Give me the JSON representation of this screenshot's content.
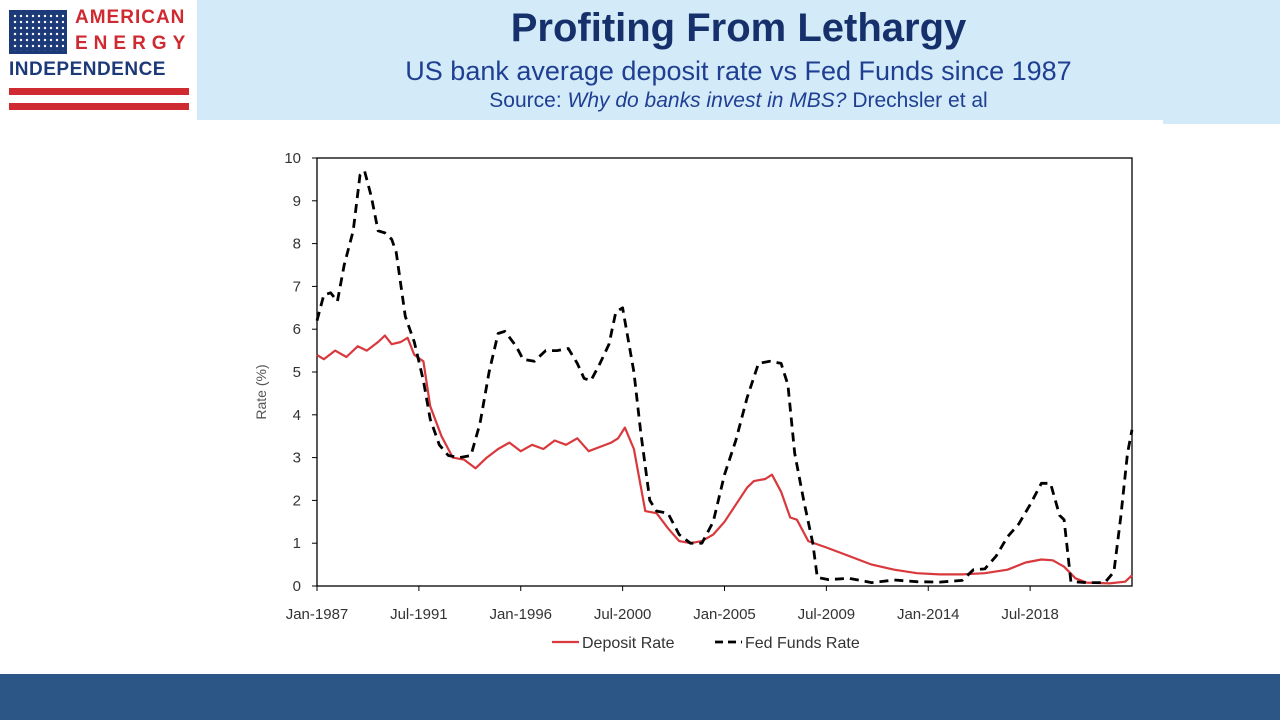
{
  "logo": {
    "line1": "AMERICAN",
    "line2": "ENERGY",
    "line3": "INDEPENDENCE"
  },
  "header": {
    "title": "Profiting From Lethargy",
    "subtitle": "US bank average deposit rate vs Fed Funds since 1987",
    "source_prefix": "Source: ",
    "source_title": "Why do banks invest in MBS?",
    "source_authors": " Drechsler et al"
  },
  "colors": {
    "header_band": "#d3eaf8",
    "title": "#15306b",
    "subtitle": "#1f3f92",
    "logo_red": "#cf2a31",
    "logo_blue": "#1d3a78",
    "footer": "#2c5685",
    "deposit_line": "#d9383c",
    "fedfunds_line": "#000000"
  },
  "chart_data": {
    "type": "line",
    "title": "",
    "xlabel": "",
    "ylabel": "Rate (%)",
    "xlim": [
      1987.0,
      2023.0
    ],
    "ylim": [
      0,
      10
    ],
    "yticks": [
      0,
      1,
      2,
      3,
      4,
      5,
      6,
      7,
      8,
      9,
      10
    ],
    "xticks": [
      {
        "label": "Jan-1987",
        "value": 1987.0
      },
      {
        "label": "Jul-1991",
        "value": 1991.5
      },
      {
        "label": "Jan-1996",
        "value": 1996.0
      },
      {
        "label": "Jul-2000",
        "value": 2000.5
      },
      {
        "label": "Jan-2005",
        "value": 2005.0
      },
      {
        "label": "Jul-2009",
        "value": 2009.5
      },
      {
        "label": "Jan-2014",
        "value": 2014.0
      },
      {
        "label": "Jul-2018",
        "value": 2018.5
      }
    ],
    "legend_position": "bottom",
    "grid": false,
    "series": [
      {
        "name": "Deposit Rate",
        "style": "solid",
        "color": "#d9383c",
        "points": [
          [
            1987.0,
            5.4
          ],
          [
            1987.3,
            5.3
          ],
          [
            1987.8,
            5.5
          ],
          [
            1988.3,
            5.35
          ],
          [
            1988.8,
            5.6
          ],
          [
            1989.2,
            5.5
          ],
          [
            1989.7,
            5.7
          ],
          [
            1990.0,
            5.85
          ],
          [
            1990.3,
            5.65
          ],
          [
            1990.7,
            5.7
          ],
          [
            1991.0,
            5.8
          ],
          [
            1991.3,
            5.4
          ],
          [
            1991.7,
            5.25
          ],
          [
            1992.0,
            4.2
          ],
          [
            1992.5,
            3.5
          ],
          [
            1993.0,
            3.0
          ],
          [
            1993.5,
            2.95
          ],
          [
            1994.0,
            2.75
          ],
          [
            1994.5,
            3.0
          ],
          [
            1995.0,
            3.2
          ],
          [
            1995.5,
            3.35
          ],
          [
            1996.0,
            3.15
          ],
          [
            1996.5,
            3.3
          ],
          [
            1997.0,
            3.2
          ],
          [
            1997.5,
            3.4
          ],
          [
            1998.0,
            3.3
          ],
          [
            1998.5,
            3.45
          ],
          [
            1999.0,
            3.15
          ],
          [
            1999.5,
            3.25
          ],
          [
            2000.0,
            3.35
          ],
          [
            2000.3,
            3.45
          ],
          [
            2000.6,
            3.7
          ],
          [
            2001.0,
            3.2
          ],
          [
            2001.5,
            1.75
          ],
          [
            2002.0,
            1.7
          ],
          [
            2002.5,
            1.35
          ],
          [
            2003.0,
            1.05
          ],
          [
            2003.5,
            1.0
          ],
          [
            2004.0,
            1.05
          ],
          [
            2004.5,
            1.2
          ],
          [
            2005.0,
            1.5
          ],
          [
            2005.5,
            1.9
          ],
          [
            2006.0,
            2.3
          ],
          [
            2006.3,
            2.45
          ],
          [
            2006.8,
            2.5
          ],
          [
            2007.1,
            2.6
          ],
          [
            2007.5,
            2.2
          ],
          [
            2007.9,
            1.6
          ],
          [
            2008.2,
            1.55
          ],
          [
            2008.7,
            1.05
          ],
          [
            2009.5,
            0.9
          ],
          [
            2010.5,
            0.7
          ],
          [
            2011.5,
            0.5
          ],
          [
            2012.5,
            0.38
          ],
          [
            2013.5,
            0.3
          ],
          [
            2014.5,
            0.27
          ],
          [
            2015.5,
            0.27
          ],
          [
            2016.5,
            0.3
          ],
          [
            2017.5,
            0.38
          ],
          [
            2018.3,
            0.55
          ],
          [
            2019.0,
            0.62
          ],
          [
            2019.5,
            0.6
          ],
          [
            2020.0,
            0.45
          ],
          [
            2020.5,
            0.18
          ],
          [
            2021.0,
            0.08
          ],
          [
            2022.0,
            0.06
          ],
          [
            2022.7,
            0.1
          ],
          [
            2023.0,
            0.25
          ]
        ]
      },
      {
        "name": "Fed Funds Rate",
        "style": "dashed",
        "color": "#000000",
        "points": [
          [
            1987.0,
            6.2
          ],
          [
            1987.3,
            6.8
          ],
          [
            1987.6,
            6.85
          ],
          [
            1987.9,
            6.65
          ],
          [
            1988.2,
            7.5
          ],
          [
            1988.6,
            8.3
          ],
          [
            1988.9,
            9.6
          ],
          [
            1989.1,
            9.7
          ],
          [
            1989.4,
            9.1
          ],
          [
            1989.7,
            8.3
          ],
          [
            1990.0,
            8.25
          ],
          [
            1990.3,
            8.1
          ],
          [
            1990.5,
            7.8
          ],
          [
            1990.9,
            6.3
          ],
          [
            1991.3,
            5.7
          ],
          [
            1991.7,
            4.8
          ],
          [
            1992.0,
            3.9
          ],
          [
            1992.4,
            3.3
          ],
          [
            1992.8,
            3.05
          ],
          [
            1993.3,
            3.0
          ],
          [
            1993.8,
            3.05
          ],
          [
            1994.2,
            3.8
          ],
          [
            1994.6,
            5.0
          ],
          [
            1995.0,
            5.9
          ],
          [
            1995.3,
            5.95
          ],
          [
            1995.8,
            5.6
          ],
          [
            1996.1,
            5.3
          ],
          [
            1996.6,
            5.25
          ],
          [
            1997.1,
            5.5
          ],
          [
            1997.6,
            5.5
          ],
          [
            1998.1,
            5.55
          ],
          [
            1998.5,
            5.2
          ],
          [
            1998.8,
            4.85
          ],
          [
            1999.1,
            4.8
          ],
          [
            1999.5,
            5.2
          ],
          [
            1999.9,
            5.65
          ],
          [
            2000.2,
            6.4
          ],
          [
            2000.5,
            6.5
          ],
          [
            2001.0,
            5.0
          ],
          [
            2001.3,
            3.6
          ],
          [
            2001.7,
            2.0
          ],
          [
            2002.0,
            1.75
          ],
          [
            2002.5,
            1.7
          ],
          [
            2003.0,
            1.2
          ],
          [
            2003.5,
            1.0
          ],
          [
            2004.0,
            1.0
          ],
          [
            2004.5,
            1.5
          ],
          [
            2005.0,
            2.6
          ],
          [
            2005.5,
            3.4
          ],
          [
            2006.0,
            4.4
          ],
          [
            2006.5,
            5.2
          ],
          [
            2007.0,
            5.25
          ],
          [
            2007.5,
            5.2
          ],
          [
            2007.8,
            4.7
          ],
          [
            2008.1,
            3.1
          ],
          [
            2008.5,
            2.0
          ],
          [
            2008.9,
            1.0
          ],
          [
            2009.1,
            0.2
          ],
          [
            2009.6,
            0.15
          ],
          [
            2010.5,
            0.18
          ],
          [
            2011.5,
            0.08
          ],
          [
            2012.5,
            0.14
          ],
          [
            2013.5,
            0.1
          ],
          [
            2014.5,
            0.09
          ],
          [
            2015.5,
            0.13
          ],
          [
            2016.0,
            0.38
          ],
          [
            2016.5,
            0.4
          ],
          [
            2017.0,
            0.7
          ],
          [
            2017.5,
            1.15
          ],
          [
            2018.0,
            1.45
          ],
          [
            2018.5,
            1.9
          ],
          [
            2019.0,
            2.4
          ],
          [
            2019.4,
            2.4
          ],
          [
            2019.8,
            1.65
          ],
          [
            2020.0,
            1.55
          ],
          [
            2020.3,
            0.1
          ],
          [
            2021.0,
            0.08
          ],
          [
            2021.8,
            0.08
          ],
          [
            2022.2,
            0.33
          ],
          [
            2022.5,
            1.6
          ],
          [
            2022.8,
            3.1
          ],
          [
            2023.0,
            3.65
          ]
        ]
      }
    ]
  }
}
